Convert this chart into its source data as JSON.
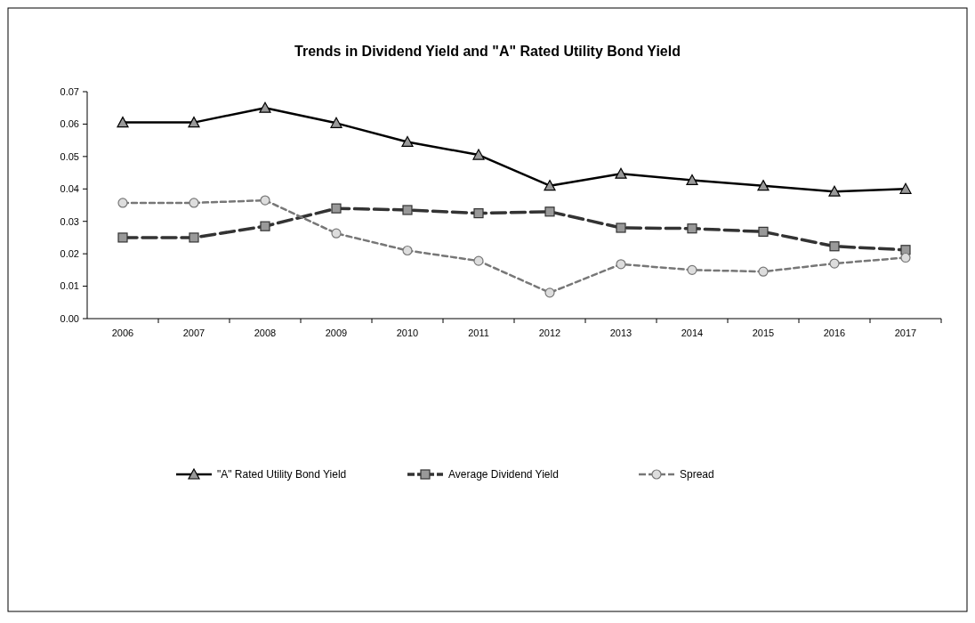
{
  "chart_data": {
    "type": "line",
    "title": "Trends in Dividend Yield and \"A\" Rated Utility Bond Yield",
    "categories": [
      "2006",
      "2007",
      "2008",
      "2009",
      "2010",
      "2011",
      "2012",
      "2013",
      "2014",
      "2015",
      "2016",
      "2017"
    ],
    "series": [
      {
        "name": "\"A\" Rated Utility Bond Yield",
        "color": "#000000",
        "marker": "triangle",
        "line_style": "solid",
        "values": [
          0.0605,
          0.0605,
          0.065,
          0.0603,
          0.0545,
          0.0505,
          0.041,
          0.0447,
          0.0427,
          0.041,
          0.0392,
          0.04
        ]
      },
      {
        "name": "Average Dividend Yield",
        "color": "#333333",
        "marker": "square",
        "line_style": "dashed",
        "values": [
          0.025,
          0.025,
          0.0285,
          0.034,
          0.0335,
          0.0325,
          0.033,
          0.028,
          0.0278,
          0.0268,
          0.0223,
          0.0212
        ]
      },
      {
        "name": "Spread",
        "color": "#777777",
        "marker": "circle",
        "line_style": "dotted",
        "values": [
          0.0357,
          0.0357,
          0.0365,
          0.0263,
          0.021,
          0.0178,
          0.008,
          0.0168,
          0.015,
          0.0145,
          0.017,
          0.0188
        ]
      }
    ],
    "ylim": [
      0,
      0.07
    ],
    "yticks": [
      {
        "value": 0,
        "label": "0.00"
      },
      {
        "value": 0.01,
        "label": "0.01"
      },
      {
        "value": 0.02,
        "label": "0.02"
      },
      {
        "value": 0.03,
        "label": "0.03"
      },
      {
        "value": 0.04,
        "label": "0.04"
      },
      {
        "value": 0.05,
        "label": "0.05"
      },
      {
        "value": 0.06,
        "label": "0.06"
      },
      {
        "value": 0.07,
        "label": "0.07"
      }
    ],
    "grid": false,
    "legend": "bottom"
  }
}
